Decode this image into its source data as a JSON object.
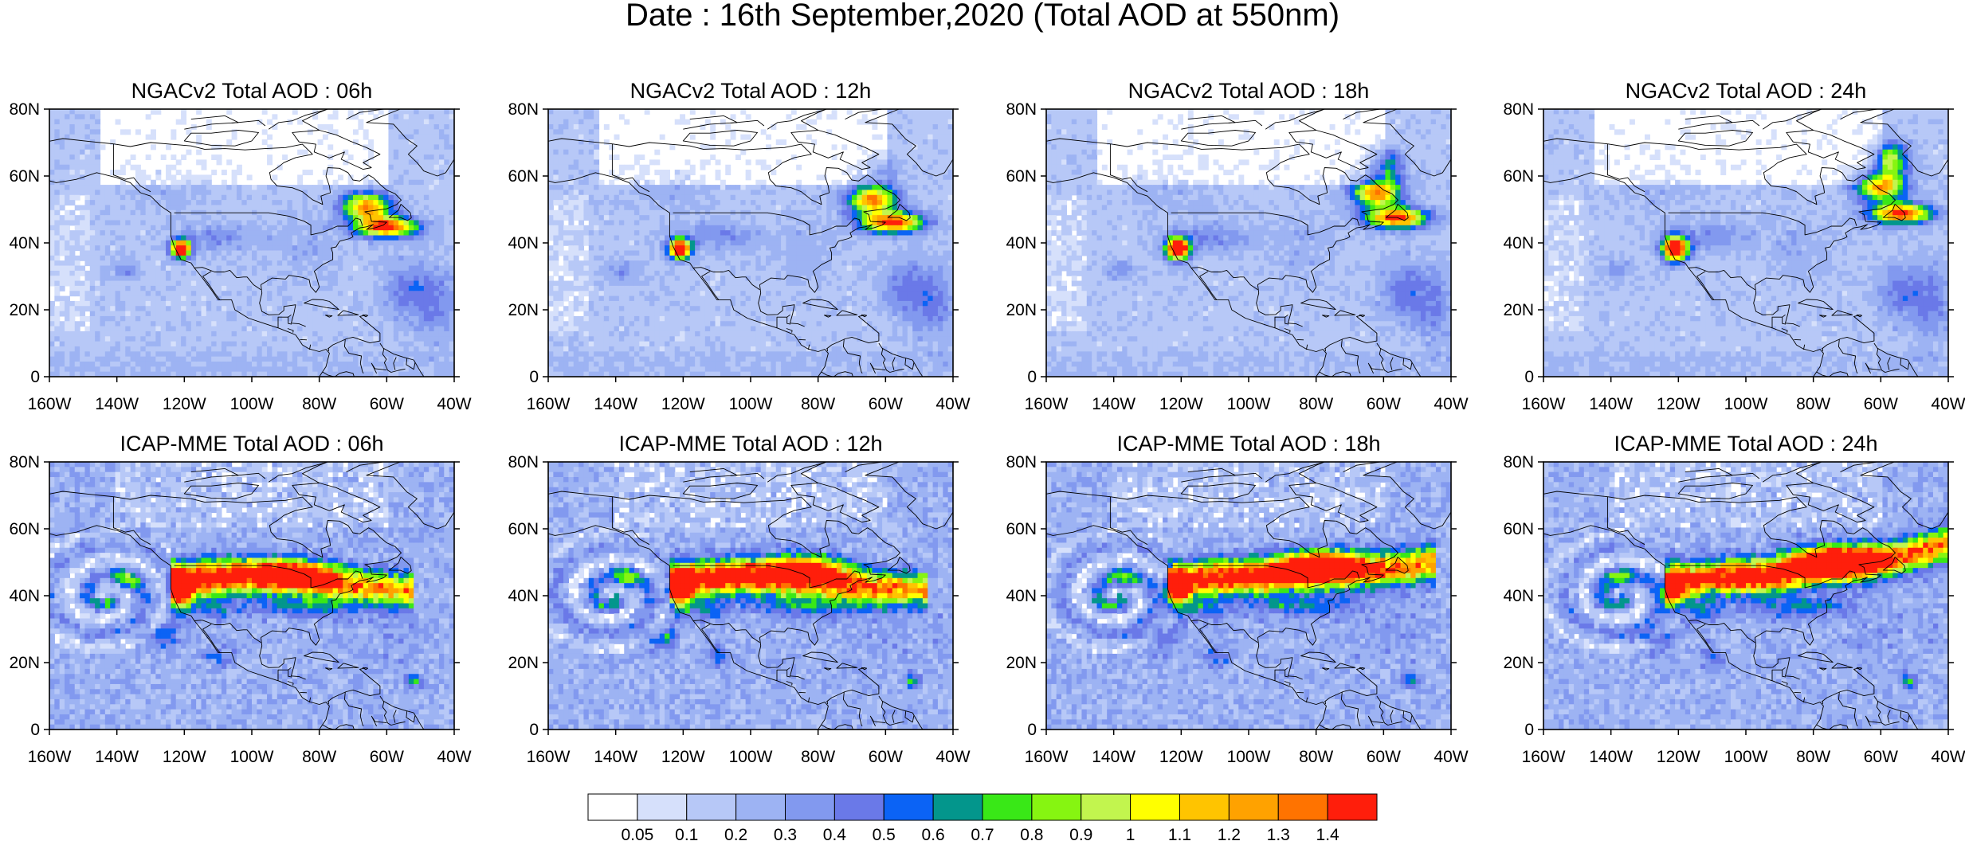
{
  "main_title": "Date : 16th September,2020 (Total AOD at 550nm)",
  "lat_labels": [
    "80N",
    "60N",
    "40N",
    "20N",
    "0"
  ],
  "lon_labels": [
    "160W",
    "140W",
    "120W",
    "100W",
    "80W",
    "60W",
    "40W"
  ],
  "map_extent": {
    "lon_min": -160,
    "lon_max": -40,
    "lat_min": 0,
    "lat_max": 80
  },
  "panels": [
    {
      "title": "NGACv2 Total AOD : 06h",
      "model": "NGACv2",
      "hour": "06h"
    },
    {
      "title": "NGACv2 Total AOD : 12h",
      "model": "NGACv2",
      "hour": "12h"
    },
    {
      "title": "NGACv2 Total AOD : 18h",
      "model": "NGACv2",
      "hour": "18h"
    },
    {
      "title": "NGACv2 Total AOD : 24h",
      "model": "NGACv2",
      "hour": "24h"
    },
    {
      "title": "ICAP-MME Total AOD : 06h",
      "model": "ICAP-MME",
      "hour": "06h"
    },
    {
      "title": "ICAP-MME Total AOD : 12h",
      "model": "ICAP-MME",
      "hour": "12h"
    },
    {
      "title": "ICAP-MME Total AOD : 18h",
      "model": "ICAP-MME",
      "hour": "18h"
    },
    {
      "title": "ICAP-MME Total AOD : 24h",
      "model": "ICAP-MME",
      "hour": "24h"
    }
  ],
  "colorbar": {
    "labels": [
      "0.05",
      "0.1",
      "0.2",
      "0.3",
      "0.4",
      "0.5",
      "0.6",
      "0.7",
      "0.8",
      "0.9",
      "1",
      "1.1",
      "1.2",
      "1.3",
      "1.4"
    ],
    "colors": [
      "#ffffff",
      "#d6e0fb",
      "#b7c8f7",
      "#9db3f3",
      "#8299ef",
      "#6a79e8",
      "#0b63f5",
      "#03968c",
      "#39e817",
      "#86f511",
      "#c2f54e",
      "#ffff00",
      "#ffc400",
      "#ffa200",
      "#ff7300",
      "#ff1e0b"
    ]
  }
}
